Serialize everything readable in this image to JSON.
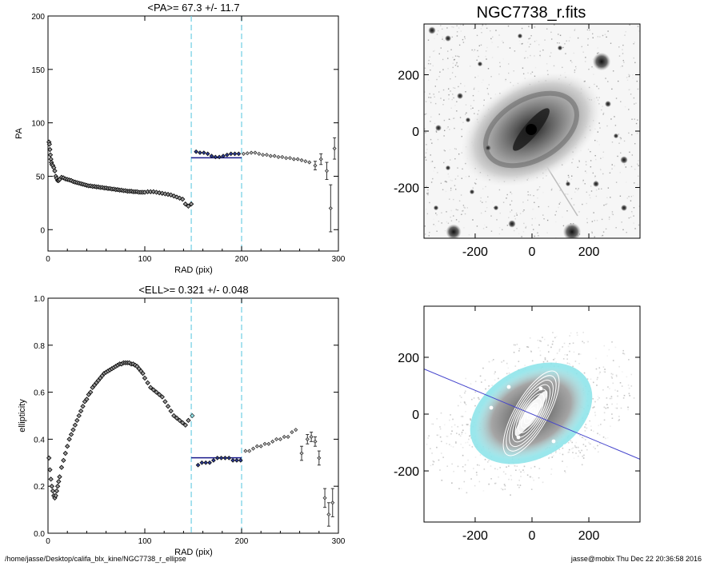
{
  "chart_data": [
    {
      "type": "scatter",
      "title": "<PA>=  67.3 +/-  11.7",
      "xlabel": "RAD (pix)",
      "ylabel": "PA",
      "xlim": [
        0,
        300
      ],
      "ylim": [
        -20,
        200
      ],
      "x_ticks": [
        "0",
        "100",
        "200",
        "300"
      ],
      "y_ticks": [
        "0",
        "50",
        "100",
        "150",
        "200"
      ],
      "vlines": [
        148,
        200
      ],
      "mean_line": {
        "x": [
          148,
          200
        ],
        "y": 67.3
      },
      "series": [
        {
          "style": "inner",
          "x": [
            1,
            1.5,
            2,
            2.5,
            3,
            3.5,
            4,
            5,
            6,
            7,
            8,
            9,
            10,
            11,
            12,
            14,
            16,
            18,
            20,
            22,
            24,
            26,
            28,
            30,
            32,
            34,
            36,
            38,
            40,
            42,
            44,
            46,
            48,
            50,
            52,
            54,
            56,
            58,
            60,
            62,
            64,
            66,
            68,
            70,
            72,
            74,
            76,
            78,
            80,
            82,
            84,
            86,
            88,
            90,
            92,
            94,
            96,
            98,
            100,
            103,
            106,
            109,
            112,
            115,
            118,
            121,
            124,
            127,
            130,
            133,
            136,
            139,
            142,
            145,
            148
          ],
          "y": [
            82,
            80,
            75,
            70,
            66,
            63,
            61,
            60,
            58,
            55,
            50,
            48,
            46,
            46,
            47,
            49,
            48.5,
            47.5,
            47,
            46.5,
            46,
            45,
            44.5,
            44,
            43.5,
            43,
            42.5,
            42,
            41.5,
            41,
            41,
            40.5,
            40.5,
            40,
            40,
            39.5,
            39.5,
            39,
            39,
            38.5,
            38.5,
            38,
            38,
            37.5,
            37.5,
            37,
            37,
            36.5,
            36.5,
            36,
            36,
            36,
            35.5,
            35.5,
            35.5,
            35,
            35,
            35,
            35,
            35.5,
            35.5,
            35.5,
            35,
            34.5,
            34,
            33.5,
            33,
            32.5,
            31.5,
            30.5,
            29.5,
            28.5,
            24,
            22,
            24
          ]
        },
        {
          "style": "blue",
          "x": [
            153,
            157,
            161,
            165,
            169,
            173,
            177,
            181,
            185,
            189,
            193,
            197
          ],
          "y": [
            73,
            72,
            72,
            71,
            69,
            68,
            68,
            69,
            70,
            71,
            71,
            71
          ]
        },
        {
          "style": "outer",
          "x": [
            202,
            206,
            210,
            214,
            218,
            222,
            226,
            230,
            234,
            238,
            242,
            246,
            250,
            254,
            258,
            262,
            266,
            270,
            276,
            282,
            288,
            292,
            296
          ],
          "y": [
            71,
            71.5,
            72,
            72,
            71,
            70,
            70,
            69,
            69,
            68,
            68,
            67,
            67,
            66,
            66,
            65,
            64,
            63,
            60,
            66,
            55,
            20,
            76
          ],
          "err": [
            0,
            0,
            0,
            0,
            0,
            0,
            0,
            0,
            0,
            0,
            0,
            0,
            0,
            0,
            0,
            0,
            0,
            0,
            4,
            5,
            8,
            22,
            10
          ]
        }
      ]
    },
    {
      "type": "scatter",
      "title": "<ELL>= 0.321 +/-  0.048",
      "xlabel": "RAD (pix)",
      "ylabel": "ellipticity",
      "xlim": [
        0,
        300
      ],
      "ylim": [
        0,
        1
      ],
      "x_ticks": [
        "0",
        "100",
        "200",
        "300"
      ],
      "y_ticks": [
        "0.0",
        "0.2",
        "0.4",
        "0.6",
        "0.8",
        "1.0"
      ],
      "vlines": [
        148,
        200
      ],
      "mean_line": {
        "x": [
          148,
          200
        ],
        "y": 0.321
      },
      "series": [
        {
          "style": "inner",
          "x": [
            1,
            2,
            3,
            4,
            5,
            6,
            7,
            8,
            9,
            10,
            11,
            12,
            14,
            16,
            18,
            20,
            22,
            24,
            26,
            28,
            30,
            32,
            34,
            36,
            38,
            40,
            42,
            44,
            46,
            48,
            50,
            52,
            54,
            56,
            58,
            60,
            62,
            64,
            66,
            68,
            70,
            72,
            74,
            76,
            78,
            80,
            82,
            84,
            86,
            88,
            90,
            92,
            94,
            96,
            98,
            100,
            103,
            106,
            109,
            112,
            115,
            118,
            121,
            124,
            127,
            130,
            133,
            136,
            139,
            142,
            145
          ],
          "y": [
            0.32,
            0.27,
            0.23,
            0.2,
            0.18,
            0.16,
            0.15,
            0.16,
            0.18,
            0.2,
            0.22,
            0.24,
            0.28,
            0.31,
            0.34,
            0.37,
            0.4,
            0.42,
            0.44,
            0.46,
            0.48,
            0.5,
            0.52,
            0.54,
            0.56,
            0.57,
            0.59,
            0.6,
            0.62,
            0.63,
            0.64,
            0.65,
            0.66,
            0.67,
            0.68,
            0.685,
            0.69,
            0.695,
            0.7,
            0.705,
            0.71,
            0.715,
            0.72,
            0.72,
            0.725,
            0.725,
            0.725,
            0.725,
            0.72,
            0.72,
            0.715,
            0.71,
            0.7,
            0.69,
            0.68,
            0.66,
            0.64,
            0.62,
            0.61,
            0.6,
            0.59,
            0.58,
            0.56,
            0.54,
            0.52,
            0.5,
            0.49,
            0.48,
            0.47,
            0.46,
            0.48
          ]
        },
        {
          "style": "cyan",
          "x": [
            149
          ],
          "y": [
            0.5
          ]
        },
        {
          "style": "blue",
          "x": [
            155,
            159,
            163,
            167,
            171,
            175,
            179,
            183,
            187,
            191,
            195,
            199
          ],
          "y": [
            0.29,
            0.3,
            0.3,
            0.3,
            0.31,
            0.32,
            0.32,
            0.32,
            0.32,
            0.31,
            0.31,
            0.31
          ]
        },
        {
          "style": "outer",
          "x": [
            204,
            208,
            212,
            216,
            220,
            224,
            228,
            232,
            236,
            240,
            244,
            248,
            252,
            256,
            262,
            268,
            272,
            276,
            280,
            286,
            290,
            294
          ],
          "y": [
            0.35,
            0.35,
            0.36,
            0.37,
            0.37,
            0.38,
            0.38,
            0.39,
            0.4,
            0.4,
            0.41,
            0.41,
            0.43,
            0.44,
            0.34,
            0.4,
            0.41,
            0.39,
            0.32,
            0.15,
            0.08,
            0.13
          ],
          "err": [
            0,
            0,
            0,
            0,
            0,
            0,
            0,
            0,
            0,
            0,
            0,
            0,
            0,
            0,
            0.03,
            0.02,
            0.02,
            0.02,
            0.03,
            0.04,
            0.05,
            0.06
          ]
        }
      ]
    },
    {
      "type": "image",
      "title": "NGC7738_r.fits",
      "xlim": [
        -380,
        380
      ],
      "ylim": [
        -380,
        380
      ],
      "x_ticks": [
        "-200",
        "0",
        "200"
      ],
      "y_ticks": [
        "-200",
        "0",
        "200"
      ]
    },
    {
      "type": "image",
      "title": "",
      "xlim": [
        -380,
        380
      ],
      "ylim": [
        -380,
        380
      ],
      "x_ticks": [
        "-200",
        "0",
        "200"
      ],
      "y_ticks": [
        "-200",
        "0",
        "200"
      ],
      "pa_line": {
        "angle_deg": 67.3
      }
    }
  ],
  "footer": {
    "path": "/home/jasse/Desktop/califa_blx_kine/NGC7738_r_ellipse",
    "stamp": "jasse@mobix  Thu Dec 22 20:36:58 2016"
  },
  "colors": {
    "vline": "#6ecfe4",
    "mean_line": "#1a1a8c",
    "blue_points": "#2a3a9a",
    "cyan_point": "#8fe4ea",
    "pa_line": "#4444cc"
  }
}
